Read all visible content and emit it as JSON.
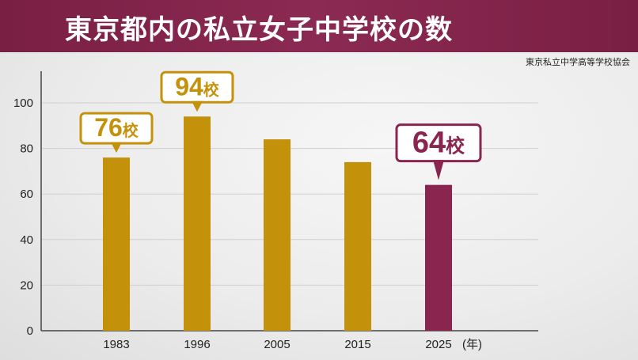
{
  "header": {
    "title": "東京都内の私立女子中学校の数"
  },
  "source": "東京私立中学高等学校協会",
  "colors": {
    "title_bg": "#7f2349",
    "gold": "#c3920a",
    "maroon": "#8a2550",
    "grid": "#cfcfcf",
    "axis": "#444444"
  },
  "chart_data": {
    "type": "bar",
    "title": "東京都内の私立女子中学校の数",
    "xlabel": "(年)",
    "ylabel": "",
    "ylim": [
      0,
      100
    ],
    "yticks": [
      0,
      20,
      40,
      60,
      80,
      100
    ],
    "grid": true,
    "categories": [
      "1983",
      "1996",
      "2005",
      "2015",
      "2025"
    ],
    "values": [
      76,
      94,
      84,
      74,
      64
    ],
    "highlight_index": 4,
    "callouts": [
      {
        "index": 0,
        "label": "76校"
      },
      {
        "index": 1,
        "label": "94校"
      },
      {
        "index": 4,
        "label": "64校"
      }
    ]
  }
}
